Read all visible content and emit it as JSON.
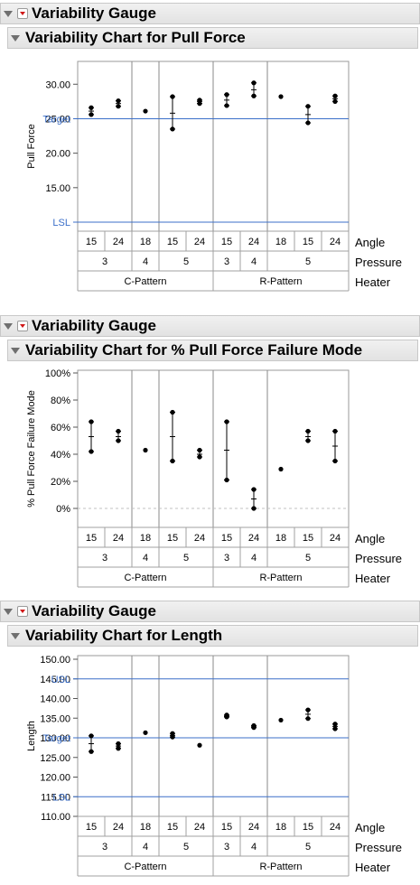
{
  "gauges": [
    {
      "section_title": "Variability Gauge",
      "chart_title": "Variability Chart for Pull Force",
      "chart_data": {
        "type": "scatter",
        "title": "Variability Chart for Pull Force",
        "ylabel": "Pull Force",
        "ylim": [
          10,
          32
        ],
        "yticks": [
          "30.00",
          "25.00",
          "20.00",
          "15.00"
        ],
        "ytick_values": [
          30,
          25,
          20,
          15
        ],
        "ref_lines": [
          {
            "label": "Target",
            "value": 25
          },
          {
            "label": "LSL",
            "value": 10
          }
        ],
        "gridlines": false,
        "x_levels": [
          {
            "name": "Angle",
            "labels": [
              "15",
              "24",
              "18",
              "15",
              "24",
              "15",
              "24",
              "18",
              "15",
              "24"
            ]
          },
          {
            "name": "Pressure",
            "labels": [
              "3",
              "4",
              "5",
              "3",
              "4",
              "5"
            ]
          },
          {
            "name": "Heater",
            "labels": [
              "C-Pattern",
              "R-Pattern"
            ]
          }
        ],
        "groups": [
          {
            "heater": "C-Pattern",
            "pressure": "3",
            "angle": "15",
            "values": [
              26.6,
              25.6
            ],
            "mean": 26.1
          },
          {
            "heater": "C-Pattern",
            "pressure": "3",
            "angle": "24",
            "values": [
              27.6,
              26.8
            ],
            "mean": 27.2
          },
          {
            "heater": "C-Pattern",
            "pressure": "4",
            "angle": "18",
            "values": [
              26.1
            ],
            "mean": 26.1
          },
          {
            "heater": "C-Pattern",
            "pressure": "5",
            "angle": "15",
            "values": [
              28.2,
              23.5
            ],
            "mean": 25.8
          },
          {
            "heater": "C-Pattern",
            "pressure": "5",
            "angle": "24",
            "values": [
              27.7,
              27.2
            ],
            "mean": 27.5
          },
          {
            "heater": "R-Pattern",
            "pressure": "3",
            "angle": "15",
            "values": [
              28.5,
              26.9
            ],
            "mean": 27.7
          },
          {
            "heater": "R-Pattern",
            "pressure": "3",
            "angle": "24",
            "values": [
              30.2,
              28.3
            ],
            "mean": 29.2
          },
          {
            "heater": "R-Pattern",
            "pressure": "4",
            "angle": "18",
            "values": [
              28.2
            ],
            "mean": 28.2
          },
          {
            "heater": "R-Pattern",
            "pressure": "5",
            "angle": "15",
            "values": [
              26.8,
              24.4
            ],
            "mean": 25.6
          },
          {
            "heater": "R-Pattern",
            "pressure": "5",
            "angle": "24",
            "values": [
              28.3,
              27.5
            ],
            "mean": 27.9
          }
        ]
      }
    },
    {
      "section_title": "Variability Gauge",
      "chart_title": "Variability Chart for % Pull Force Failure Mode",
      "chart_data": {
        "type": "scatter",
        "title": "Variability Chart for % Pull Force Failure Mode",
        "ylabel": "% Pull Force Failure Mode",
        "ylim": [
          -10,
          100
        ],
        "yticks": [
          "100%",
          "80%",
          "60%",
          "40%",
          "20%",
          "0%"
        ],
        "ytick_values": [
          100,
          80,
          60,
          40,
          20,
          0
        ],
        "ref_lines": [],
        "gridlines": false,
        "x_levels": [
          {
            "name": "Angle",
            "labels": [
              "15",
              "24",
              "18",
              "15",
              "24",
              "15",
              "24",
              "18",
              "15",
              "24"
            ]
          },
          {
            "name": "Pressure",
            "labels": [
              "3",
              "4",
              "5",
              "3",
              "4",
              "5"
            ]
          },
          {
            "name": "Heater",
            "labels": [
              "C-Pattern",
              "R-Pattern"
            ]
          }
        ],
        "groups": [
          {
            "heater": "C-Pattern",
            "pressure": "3",
            "angle": "15",
            "values": [
              64,
              42
            ],
            "mean": 53
          },
          {
            "heater": "C-Pattern",
            "pressure": "3",
            "angle": "24",
            "values": [
              57,
              50
            ],
            "mean": 53
          },
          {
            "heater": "C-Pattern",
            "pressure": "4",
            "angle": "18",
            "values": [
              43
            ],
            "mean": 43
          },
          {
            "heater": "C-Pattern",
            "pressure": "5",
            "angle": "15",
            "values": [
              71,
              35
            ],
            "mean": 53
          },
          {
            "heater": "C-Pattern",
            "pressure": "5",
            "angle": "24",
            "values": [
              43,
              38
            ],
            "mean": 40
          },
          {
            "heater": "R-Pattern",
            "pressure": "3",
            "angle": "15",
            "values": [
              64,
              21
            ],
            "mean": 43
          },
          {
            "heater": "R-Pattern",
            "pressure": "3",
            "angle": "24",
            "values": [
              14,
              0
            ],
            "mean": 7
          },
          {
            "heater": "R-Pattern",
            "pressure": "4",
            "angle": "18",
            "values": [
              29
            ],
            "mean": 29
          },
          {
            "heater": "R-Pattern",
            "pressure": "5",
            "angle": "15",
            "values": [
              57,
              50
            ],
            "mean": 53
          },
          {
            "heater": "R-Pattern",
            "pressure": "5",
            "angle": "24",
            "values": [
              57,
              35
            ],
            "mean": 46
          }
        ]
      }
    },
    {
      "section_title": "Variability Gauge",
      "chart_title": "Variability Chart for Length",
      "chart_data": {
        "type": "scatter",
        "title": "Variability Chart for Length",
        "ylabel": "Length",
        "ylim": [
          110,
          150
        ],
        "yticks": [
          "150.00",
          "145.00",
          "140.00",
          "135.00",
          "130.00",
          "125.00",
          "120.00",
          "115.00",
          "110.00"
        ],
        "ytick_values": [
          150,
          145,
          140,
          135,
          130,
          125,
          120,
          115,
          110
        ],
        "ref_lines": [
          {
            "label": "USL",
            "value": 145
          },
          {
            "label": "Target",
            "value": 130
          },
          {
            "label": "LSL",
            "value": 115
          }
        ],
        "gridlines": false,
        "x_levels": [
          {
            "name": "Angle",
            "labels": [
              "15",
              "24",
              "18",
              "15",
              "24",
              "15",
              "24",
              "18",
              "15",
              "24"
            ]
          },
          {
            "name": "Pressure",
            "labels": [
              "3",
              "4",
              "5",
              "3",
              "4",
              "5"
            ]
          },
          {
            "name": "Heater",
            "labels": [
              "C-Pattern",
              "R-Pattern"
            ]
          }
        ],
        "groups": [
          {
            "heater": "C-Pattern",
            "pressure": "3",
            "angle": "15",
            "values": [
              130.5,
              126.5
            ],
            "mean": 128.5
          },
          {
            "heater": "C-Pattern",
            "pressure": "3",
            "angle": "24",
            "values": [
              128.5,
              127.3
            ],
            "mean": 127.9
          },
          {
            "heater": "C-Pattern",
            "pressure": "4",
            "angle": "18",
            "values": [
              131.3
            ],
            "mean": 131.3
          },
          {
            "heater": "C-Pattern",
            "pressure": "5",
            "angle": "15",
            "values": [
              131.1,
              130.2
            ],
            "mean": 130.6
          },
          {
            "heater": "C-Pattern",
            "pressure": "5",
            "angle": "24",
            "values": [
              128.1
            ],
            "mean": 128.1
          },
          {
            "heater": "R-Pattern",
            "pressure": "3",
            "angle": "15",
            "values": [
              135.8,
              135.3
            ],
            "mean": 135.5
          },
          {
            "heater": "R-Pattern",
            "pressure": "3",
            "angle": "24",
            "values": [
              133.1,
              132.6
            ],
            "mean": 132.8
          },
          {
            "heater": "R-Pattern",
            "pressure": "4",
            "angle": "18",
            "values": [
              134.5
            ],
            "mean": 134.5
          },
          {
            "heater": "R-Pattern",
            "pressure": "5",
            "angle": "15",
            "values": [
              137.1,
              134.9
            ],
            "mean": 136.0
          },
          {
            "heater": "R-Pattern",
            "pressure": "5",
            "angle": "24",
            "values": [
              133.5,
              132.3
            ],
            "mean": 132.9
          }
        ]
      }
    }
  ]
}
